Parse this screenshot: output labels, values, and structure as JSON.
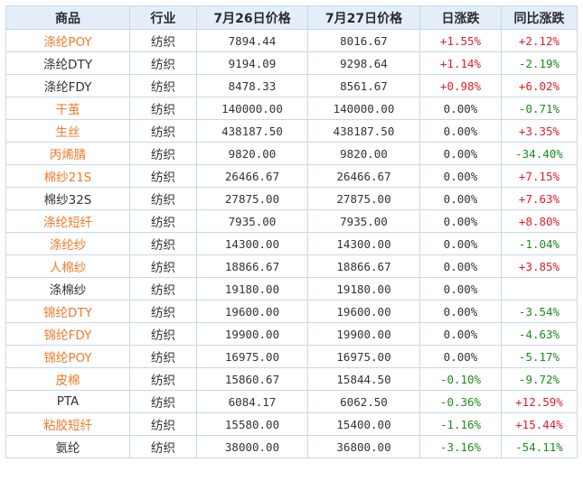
{
  "table": {
    "headers": [
      "商品",
      "行业",
      "7月26日价格",
      "7月27日价格",
      "日涨跌",
      "同比涨跌"
    ],
    "colors": {
      "link": "#ee7a2a",
      "up": "#e0202a",
      "down": "#1e8a1e",
      "header_bg": "#e3eefa",
      "border": "#c9d8ea"
    },
    "rows": [
      {
        "name": "涤纶POY",
        "link": true,
        "industry": "纺织",
        "p26": "7894.44",
        "p27": "8016.67",
        "day": "+1.55%",
        "yoy": "+2.12%"
      },
      {
        "name": "涤纶DTY",
        "link": false,
        "industry": "纺织",
        "p26": "9194.09",
        "p27": "9298.64",
        "day": "+1.14%",
        "yoy": "-2.19%"
      },
      {
        "name": "涤纶FDY",
        "link": false,
        "industry": "纺织",
        "p26": "8478.33",
        "p27": "8561.67",
        "day": "+0.98%",
        "yoy": "+6.02%"
      },
      {
        "name": "干茧",
        "link": true,
        "industry": "纺织",
        "p26": "140000.00",
        "p27": "140000.00",
        "day": "0.00%",
        "yoy": "-0.71%"
      },
      {
        "name": "生丝",
        "link": true,
        "industry": "纺织",
        "p26": "438187.50",
        "p27": "438187.50",
        "day": "0.00%",
        "yoy": "+3.35%"
      },
      {
        "name": "丙烯腈",
        "link": true,
        "industry": "纺织",
        "p26": "9820.00",
        "p27": "9820.00",
        "day": "0.00%",
        "yoy": "-34.40%"
      },
      {
        "name": "棉纱21S",
        "link": true,
        "industry": "纺织",
        "p26": "26466.67",
        "p27": "26466.67",
        "day": "0.00%",
        "yoy": "+7.15%"
      },
      {
        "name": "棉纱32S",
        "link": false,
        "industry": "纺织",
        "p26": "27875.00",
        "p27": "27875.00",
        "day": "0.00%",
        "yoy": "+7.63%"
      },
      {
        "name": "涤纶短纤",
        "link": true,
        "industry": "纺织",
        "p26": "7935.00",
        "p27": "7935.00",
        "day": "0.00%",
        "yoy": "+8.80%"
      },
      {
        "name": "涤纶纱",
        "link": true,
        "industry": "纺织",
        "p26": "14300.00",
        "p27": "14300.00",
        "day": "0.00%",
        "yoy": "-1.04%"
      },
      {
        "name": "人棉纱",
        "link": true,
        "industry": "纺织",
        "p26": "18866.67",
        "p27": "18866.67",
        "day": "0.00%",
        "yoy": "+3.85%"
      },
      {
        "name": "涤棉纱",
        "link": false,
        "industry": "纺织",
        "p26": "19180.00",
        "p27": "19180.00",
        "day": "0.00%",
        "yoy": ""
      },
      {
        "name": "锦纶DTY",
        "link": true,
        "industry": "纺织",
        "p26": "19600.00",
        "p27": "19600.00",
        "day": "0.00%",
        "yoy": "-3.54%"
      },
      {
        "name": "锦纶FDY",
        "link": true,
        "industry": "纺织",
        "p26": "19900.00",
        "p27": "19900.00",
        "day": "0.00%",
        "yoy": "-4.63%"
      },
      {
        "name": "锦纶POY",
        "link": true,
        "industry": "纺织",
        "p26": "16975.00",
        "p27": "16975.00",
        "day": "0.00%",
        "yoy": "-5.17%"
      },
      {
        "name": "皮棉",
        "link": true,
        "industry": "纺织",
        "p26": "15860.67",
        "p27": "15844.50",
        "day": "-0.10%",
        "yoy": "-9.72%"
      },
      {
        "name": "PTA",
        "link": false,
        "industry": "纺织",
        "p26": "6084.17",
        "p27": "6062.50",
        "day": "-0.36%",
        "yoy": "+12.59%"
      },
      {
        "name": "粘胶短纤",
        "link": true,
        "industry": "纺织",
        "p26": "15580.00",
        "p27": "15400.00",
        "day": "-1.16%",
        "yoy": "+15.44%"
      },
      {
        "name": "氨纶",
        "link": false,
        "industry": "纺织",
        "p26": "38000.00",
        "p27": "36800.00",
        "day": "-3.16%",
        "yoy": "-54.11%"
      }
    ]
  }
}
